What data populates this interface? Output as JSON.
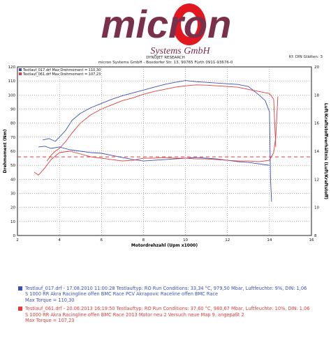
{
  "logo": {
    "word": "micron",
    "sub": "Systems GmbH"
  },
  "header": {
    "company": "DYNOJET RESEARCH",
    "address": "micron Systems GmbH - Boxdorfer Str. 13, 90765 Fürth    0911-93676-0",
    "kf": "Kf: DIN  Glätten: 3"
  },
  "chart_data": {
    "type": "line",
    "title": "",
    "xlabel": "Motordrehzahl  (Upm x1000)",
    "ylabel_left": "Drehmoment (Nm)",
    "ylabel_right": "Luft/Kraftstoffverhältnis (Luft/Kraftstoff)",
    "xlim": [
      2,
      16
    ],
    "ylim_left": [
      0,
      120
    ],
    "ylim_right": [
      8,
      20
    ],
    "x_ticks": [
      "2",
      "4",
      "6",
      "8",
      "10",
      "12",
      "14",
      "16"
    ],
    "y_ticks_left": [
      "0",
      "10",
      "20",
      "30",
      "40",
      "50",
      "60",
      "70",
      "80",
      "90",
      "100",
      "110",
      "120"
    ],
    "y_ticks_right": [
      "8",
      "10",
      "12",
      "14",
      "16",
      "18",
      "20"
    ],
    "grid": true,
    "legend_inset": [
      "Testlauf_017.drf Max Drehmoment = 110,30",
      "Testlauf_061.drf Max Drehmoment = 107,23"
    ],
    "reference_afr": 13.6,
    "series": [
      {
        "name": "Testlauf_017.drf",
        "color": "#3b4fb8",
        "axis": "left",
        "x": [
          3.2,
          3.5,
          3.8,
          4.0,
          4.3,
          4.6,
          5.0,
          5.5,
          6.0,
          6.5,
          7.0,
          7.5,
          8.0,
          8.5,
          9.0,
          9.5,
          10.0,
          10.5,
          11.0,
          11.5,
          12.0,
          12.5,
          13.0,
          13.5,
          13.8,
          14.0,
          14.05,
          14.1
        ],
        "y": [
          68,
          69,
          67,
          70,
          75,
          82,
          87,
          91,
          94,
          97,
          99.5,
          101.5,
          103.5,
          105.5,
          107.5,
          109,
          110.3,
          109.5,
          109,
          108.5,
          108,
          107.5,
          106,
          100,
          96,
          88,
          40,
          24
        ]
      },
      {
        "name": "Testlauf_061.drf",
        "color": "#e03c3c",
        "axis": "left",
        "x": [
          3.4,
          3.6,
          3.8,
          4.0,
          4.3,
          4.6,
          5.0,
          5.5,
          6.0,
          6.5,
          7.0,
          7.5,
          8.0,
          8.5,
          9.0,
          9.5,
          10.0,
          10.5,
          11.0,
          11.5,
          12.0,
          12.5,
          13.0,
          13.5,
          14.0,
          14.2,
          14.3
        ],
        "y": [
          53,
          57,
          60,
          62,
          67,
          73,
          80,
          86,
          90,
          93,
          96,
          98,
          100.5,
          102.5,
          104,
          105.5,
          106.5,
          107.2,
          107,
          106.5,
          106,
          105.5,
          104,
          102.5,
          101,
          97,
          63
        ]
      },
      {
        "name": "Testlauf_017.drf AFR",
        "color": "#3b4fb8",
        "axis": "right",
        "x": [
          3.0,
          3.3,
          3.6,
          4.0,
          4.5,
          5.0,
          5.5,
          6.0,
          6.5,
          7.0,
          7.5,
          8.0,
          8.5,
          9.0,
          9.5,
          10.0,
          10.5,
          11.0,
          11.5,
          12.0,
          12.5,
          13.0,
          13.5,
          14.0
        ],
        "y": [
          14.3,
          14.35,
          14.2,
          14.3,
          14.1,
          14.0,
          13.9,
          13.85,
          13.7,
          13.55,
          13.4,
          13.3,
          13.35,
          13.4,
          13.45,
          13.5,
          13.55,
          13.5,
          13.45,
          13.35,
          13.25,
          13.2,
          13.1,
          13.0
        ]
      },
      {
        "name": "Testlauf_061.drf AFR",
        "color": "#e03c3c",
        "axis": "right",
        "x": [
          2.8,
          3.0,
          3.3,
          3.6,
          4.0,
          4.5,
          5.0,
          5.5,
          6.0,
          6.5,
          7.0,
          7.5,
          8.0,
          8.5,
          9.0,
          9.5,
          10.0,
          10.5,
          11.0,
          11.5,
          12.0,
          12.5,
          13.0,
          13.5,
          14.0,
          14.2,
          14.3,
          14.4
        ],
        "y": [
          12.5,
          12.3,
          12.8,
          13.4,
          13.9,
          14.0,
          13.8,
          13.6,
          13.5,
          13.4,
          13.3,
          13.35,
          13.5,
          13.5,
          13.55,
          13.5,
          13.5,
          13.45,
          13.45,
          13.4,
          13.35,
          13.3,
          13.3,
          13.25,
          13.35,
          13.9,
          15.0,
          17.9
        ]
      }
    ],
    "legend": [
      {
        "color": "#3b4fb8",
        "lines": [
          "Testlauf_017.drf - 17.08.2010 11:00:28  Testlauftyp: RO  Run Conditions: 33,34 °C, 979,50 Mbar,  Luftfeuchte: 9%, DIN: 1,06",
          "S 1000 RR Akra Racingline offen BMC Race PCV Akrapovic Raceline offen BMC Race",
          "Max Torque = 110,30"
        ]
      },
      {
        "color": "#e03c3c",
        "lines": [
          "Testlauf_061.drf - 20.06.2013 16:19:50  Testlauftyp: RO  Run Conditions: 37,60 °C, 980,67 Mbar,  Luftfeuchte: 10%, DIN: 1,06",
          "S 1000 RR Akra Racingline offen BMC Race 2013 Motor neu 2  Versuch neue Map 9. angepaßt 2",
          "Max Torque = 107,23"
        ]
      }
    ]
  }
}
